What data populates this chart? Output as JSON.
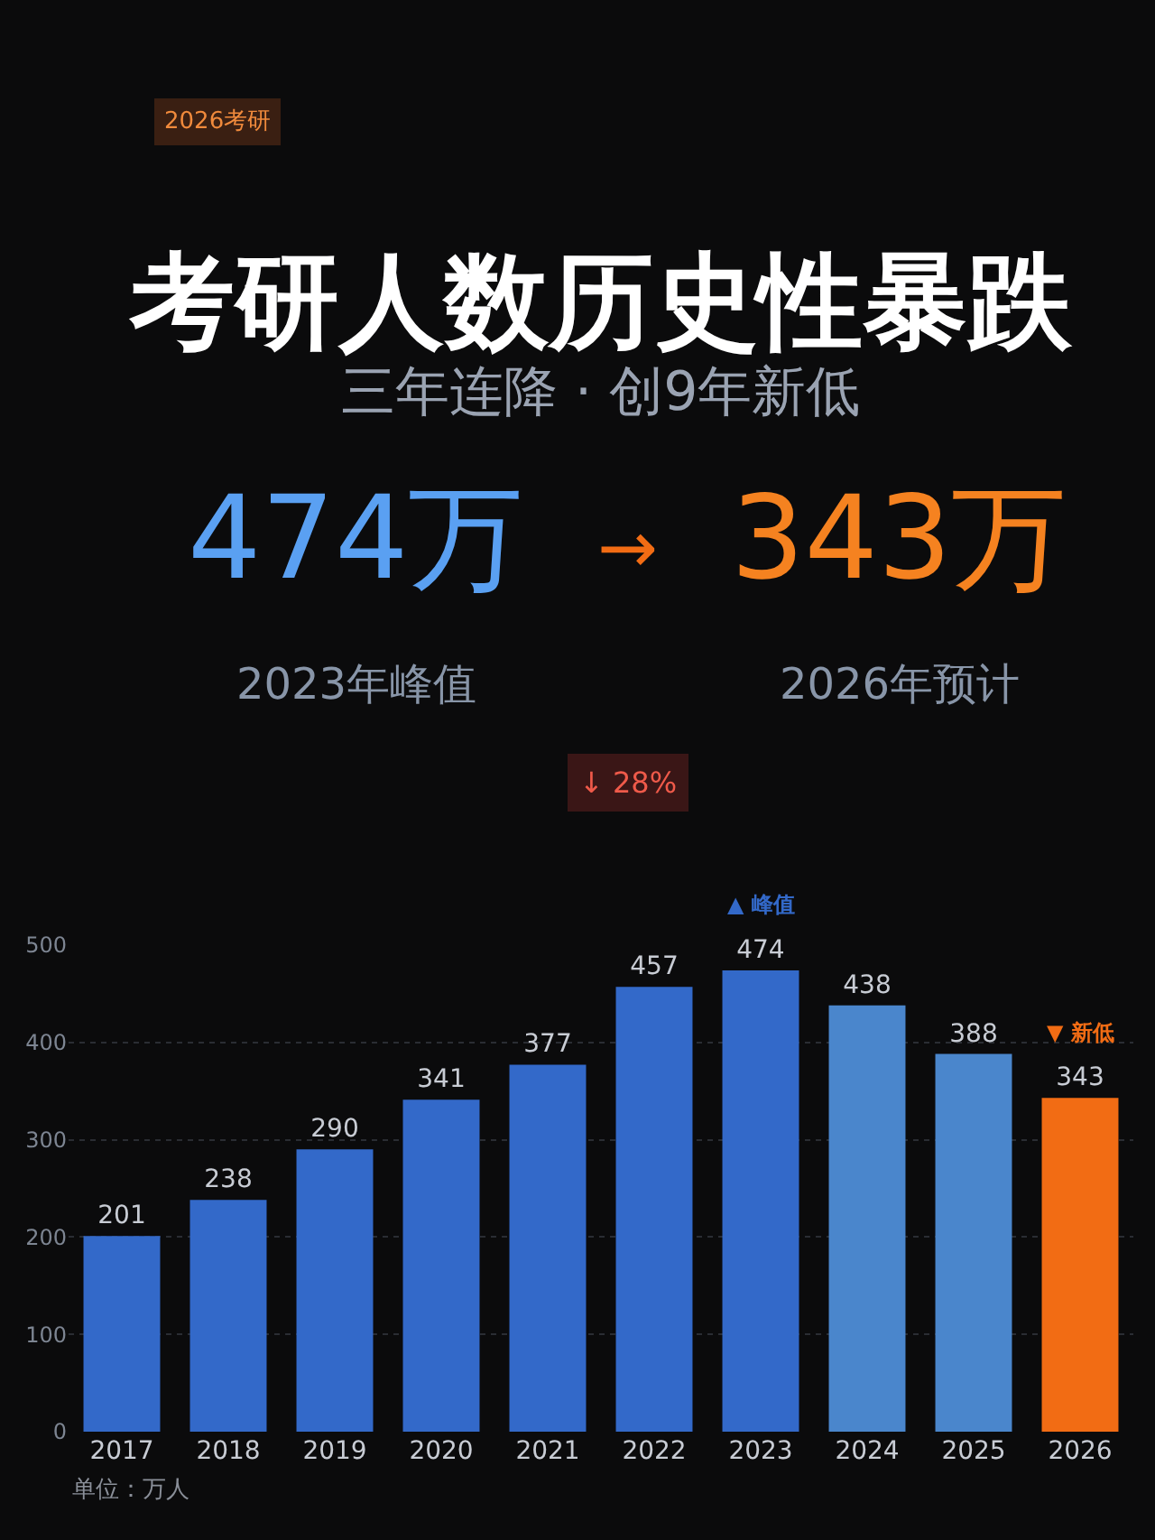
{
  "chart_data": {
    "type": "bar",
    "title": "考研人数历史性暴跌",
    "subtitle": "三年连降 · 创9年新低",
    "categories": [
      "2017",
      "2018",
      "2019",
      "2020",
      "2021",
      "2022",
      "2023",
      "2024",
      "2025",
      "2026"
    ],
    "values": [
      201,
      238,
      290,
      341,
      377,
      457,
      474,
      438,
      388,
      343
    ],
    "colors": [
      "#3369c9",
      "#3369c9",
      "#3369c9",
      "#3369c9",
      "#3369c9",
      "#3369c9",
      "#3369c9",
      "#4a86cc",
      "#4a86cc",
      "#f26c14"
    ],
    "ylim": [
      0,
      500
    ],
    "yticks": [
      0,
      100,
      200,
      300,
      400,
      500
    ],
    "grid": "y",
    "data_labels": true,
    "annotations": [
      "2026考研",
      "474万",
      "→",
      "343万",
      "2023年峰值",
      "2026年预计",
      "↓ 28%",
      {
        "text": "▲ 峰值",
        "x": "2023",
        "y": 474
      },
      {
        "text": "▼ 新低",
        "x": "2026",
        "y": 343
      },
      "单位：万人"
    ]
  }
}
